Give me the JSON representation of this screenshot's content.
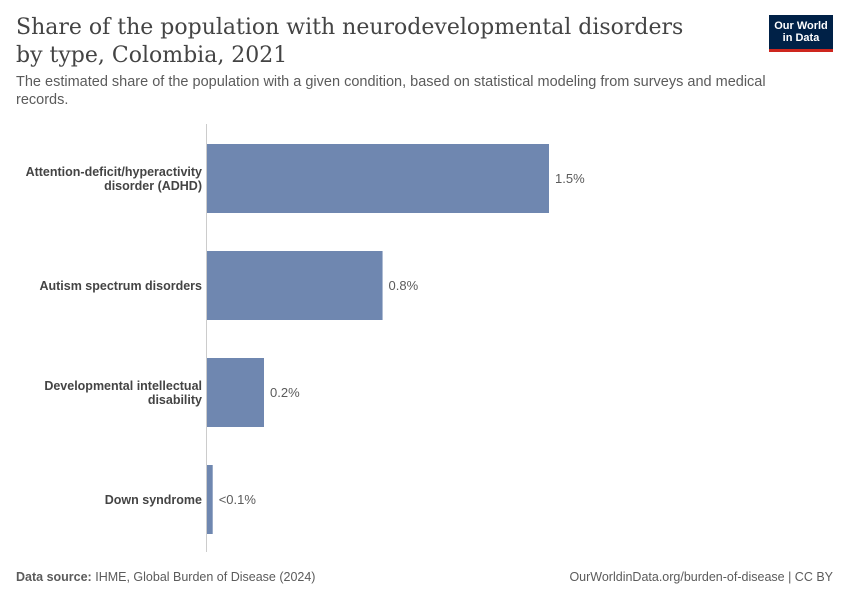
{
  "header": {
    "title": "Share of the population with neurodevelopmental disorders by type, Colombia, 2021",
    "subtitle": "The estimated share of the population with a given condition, based on statistical modeling from surveys and medical records.",
    "logo_text": "Our World in Data"
  },
  "footer": {
    "source_label": "Data source:",
    "source_text": "IHME, Global Burden of Disease (2024)",
    "url_text": "OurWorldinData.org/burden-of-disease | CC BY"
  },
  "colors": {
    "bar": "#6f87b0",
    "axis": "#cccccc",
    "label": "#444444",
    "value_label": "#5b5b5b",
    "logo_bg": "#002147",
    "logo_accent": "#ce261e"
  },
  "chart_data": {
    "type": "bar",
    "orientation": "horizontal",
    "title": "Share of the population with neurodevelopmental disorders by type, Colombia, 2021",
    "categories": [
      [
        "Attention-deficit/hyperactivity",
        "disorder (ADHD)"
      ],
      [
        "Autism spectrum disorders"
      ],
      [
        "Developmental intellectual",
        "disability"
      ],
      [
        "Down syndrome"
      ]
    ],
    "values": [
      1.5,
      0.77,
      0.25,
      0.025
    ],
    "value_labels": [
      "1.5%",
      "0.8%",
      "0.2%",
      "<0.1%"
    ],
    "xlim": [
      0,
      1.5
    ],
    "grid": false,
    "legend": false
  }
}
